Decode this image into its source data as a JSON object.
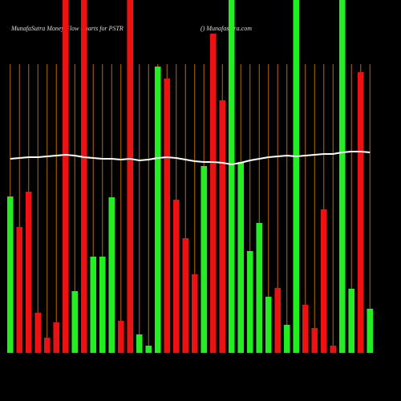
{
  "chart_data": {
    "type": "bar",
    "title": "MunafaSutra  Money Flow  Charts for PSTR",
    "subtitle": "() Munafasutra.com",
    "categories": [
      null,
      null,
      null,
      null,
      null,
      null,
      null,
      null,
      null,
      null,
      null,
      null,
      null,
      null,
      null,
      null,
      null,
      null,
      null,
      null,
      null,
      null,
      null,
      null,
      null,
      null,
      null,
      null,
      null,
      null,
      null,
      null,
      null,
      null,
      null,
      null,
      null,
      null,
      null,
      null
    ],
    "values": [
      195,
      157,
      201,
      50,
      19,
      38,
      440,
      77,
      440,
      120,
      120,
      194,
      40,
      440,
      23,
      9,
      357,
      342,
      191,
      143,
      98,
      233,
      398,
      315,
      440,
      238,
      127,
      162,
      70,
      81,
      35,
      440,
      60,
      31,
      179,
      9,
      440,
      80,
      350,
      55
    ],
    "colors": [
      "#22ee22",
      "#ee1111",
      "#ee1111",
      "#ee1111",
      "#ee1111",
      "#ee1111",
      "#ee1111",
      "#22ee22",
      "#ee1111",
      "#22ee22",
      "#22ee22",
      "#22ee22",
      "#ee1111",
      "#ee1111",
      "#22ee22",
      "#22ee22",
      "#22ee22",
      "#ee1111",
      "#ee1111",
      "#ee1111",
      "#ee1111",
      "#22ee22",
      "#ee1111",
      "#ee1111",
      "#22ee22",
      "#22ee22",
      "#22ee22",
      "#22ee22",
      "#22ee22",
      "#ee1111",
      "#22ee22",
      "#22ee22",
      "#ee1111",
      "#ee1111",
      "#ee1111",
      "#ee1111",
      "#22ee22",
      "#22ee22",
      "#ee1111",
      "#22ee22"
    ],
    "line": {
      "color": "#ffffff",
      "values": [
        242,
        243,
        244,
        244,
        245,
        246,
        247,
        246,
        244,
        243,
        242,
        242,
        241,
        242,
        240,
        241,
        243,
        244,
        243,
        241,
        239,
        238,
        238,
        237,
        235,
        237,
        240,
        242,
        244,
        245,
        246,
        245,
        246,
        247,
        248,
        248,
        250,
        251,
        251,
        250
      ]
    },
    "ylim": [
      0,
      440
    ],
    "grid": true,
    "grid_color": "#b86a00"
  }
}
